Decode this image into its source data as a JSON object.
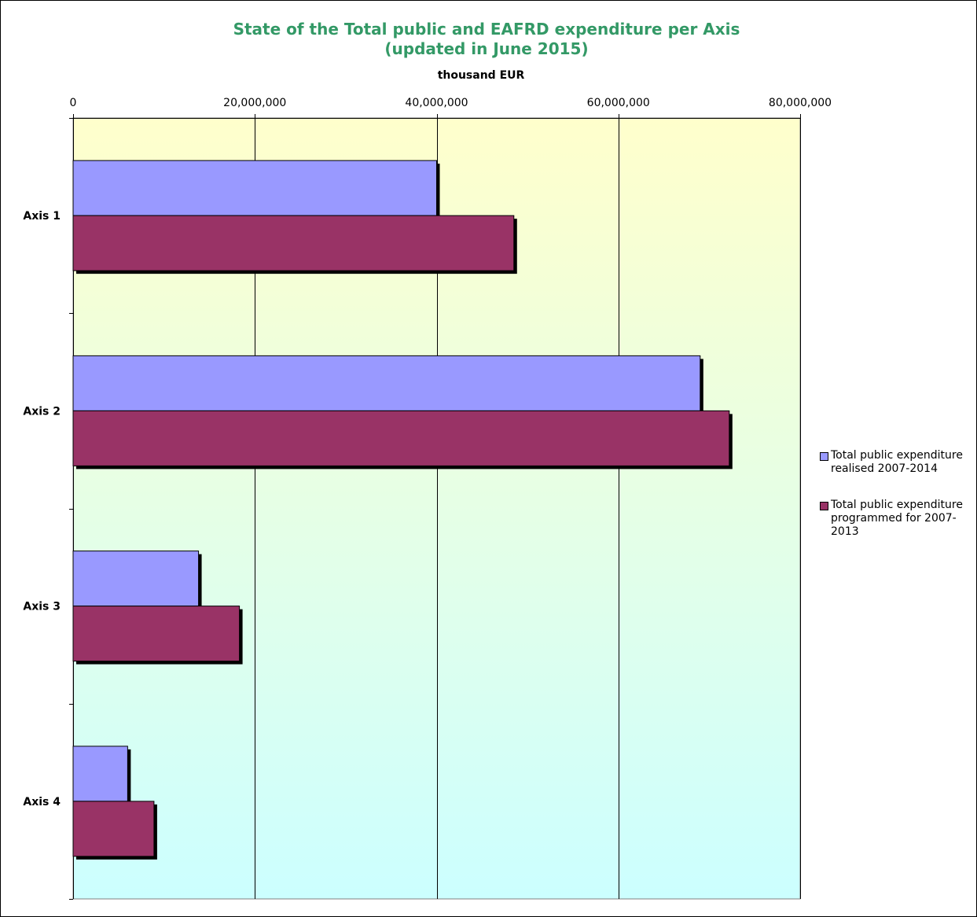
{
  "chart_data": {
    "type": "bar",
    "orientation": "horizontal",
    "title_line1": "State of the Total public and EAFRD expenditure per Axis",
    "title_line2": "(updated in June 2015)",
    "unit_label": "thousand EUR",
    "categories": [
      "Axis 1",
      "Axis 2",
      "Axis 3",
      "Axis 4"
    ],
    "series": [
      {
        "name": "Total public expenditure realised 2007-2014",
        "color": "#9999FF",
        "values": [
          40000000,
          69000000,
          13800000,
          6000000
        ]
      },
      {
        "name": "Total public expenditure programmed for 2007-2013",
        "color": "#993366",
        "values": [
          48500000,
          72200000,
          18300000,
          8900000
        ]
      }
    ],
    "xlim": [
      0,
      80000000
    ],
    "xticks": [
      0,
      20000000,
      40000000,
      60000000,
      80000000
    ],
    "xtick_labels": [
      "0",
      "20,000,000",
      "40,000,000",
      "60,000,000",
      "80,000,000"
    ],
    "grid": true,
    "legend_position": "right",
    "background_gradient": [
      "#FFFFCC",
      "#CCFFFF"
    ]
  }
}
